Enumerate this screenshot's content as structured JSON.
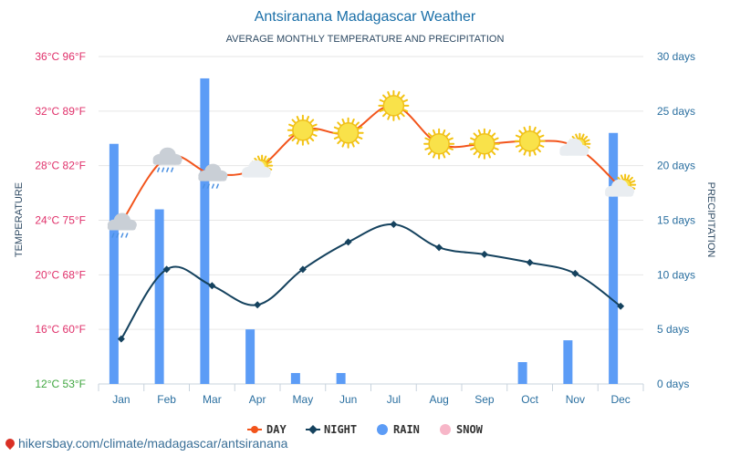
{
  "title": "Antsiranana Madagascar Weather",
  "subtitle": "AVERAGE MONTHLY TEMPERATURE AND PRECIPITATION",
  "footer_text": "hikersbay.com/climate/madagascar/antsiranana",
  "chart_data": {
    "type": "bar+line",
    "categories": [
      "Jan",
      "Feb",
      "Mar",
      "Apr",
      "May",
      "Jun",
      "Jul",
      "Aug",
      "Sep",
      "Oct",
      "Nov",
      "Dec"
    ],
    "left_axis": {
      "label": "TEMPERATURE",
      "range": [
        12,
        36
      ],
      "ticks": [
        "12°C 53°F",
        "16°C 60°F",
        "20°C 68°F",
        "24°C 75°F",
        "28°C 82°F",
        "32°C 89°F",
        "36°C 96°F"
      ]
    },
    "right_axis": {
      "label": "PRECIPITATION",
      "range": [
        0,
        30
      ],
      "ticks": [
        "0 days",
        "5 days",
        "10 days",
        "15 days",
        "20 days",
        "25 days",
        "30 days"
      ]
    },
    "series": [
      {
        "name": "DAY",
        "type": "line",
        "axis": "left",
        "color": "#f2541b",
        "values": [
          23.8,
          28.6,
          27.4,
          27.8,
          30.6,
          30.4,
          32.4,
          29.6,
          29.6,
          29.8,
          29.4,
          26.4
        ]
      },
      {
        "name": "NIGHT",
        "type": "line",
        "axis": "left",
        "color": "#15425e",
        "values": [
          15.3,
          20.4,
          19.2,
          17.8,
          20.4,
          22.4,
          23.7,
          22.0,
          21.5,
          20.9,
          20.1,
          17.7
        ]
      },
      {
        "name": "RAIN",
        "type": "bar",
        "axis": "right",
        "color": "#5c9cf6",
        "values": [
          22,
          16,
          28,
          5,
          1,
          1,
          0,
          0,
          0,
          2,
          4,
          23
        ]
      },
      {
        "name": "SNOW",
        "type": "bar",
        "axis": "right",
        "color": "#f7b6c8",
        "values": [
          0,
          0,
          0,
          0,
          0,
          0,
          0,
          0,
          0,
          0,
          0,
          0
        ]
      }
    ],
    "weather_icons": [
      "cloud-rain",
      "cloud-rain",
      "cloud-rain",
      "sun-cloud",
      "sun",
      "sun",
      "sun",
      "sun",
      "sun",
      "sun",
      "sun-cloud",
      "sun-cloud"
    ],
    "grid": true,
    "legend_position": "bottom"
  }
}
